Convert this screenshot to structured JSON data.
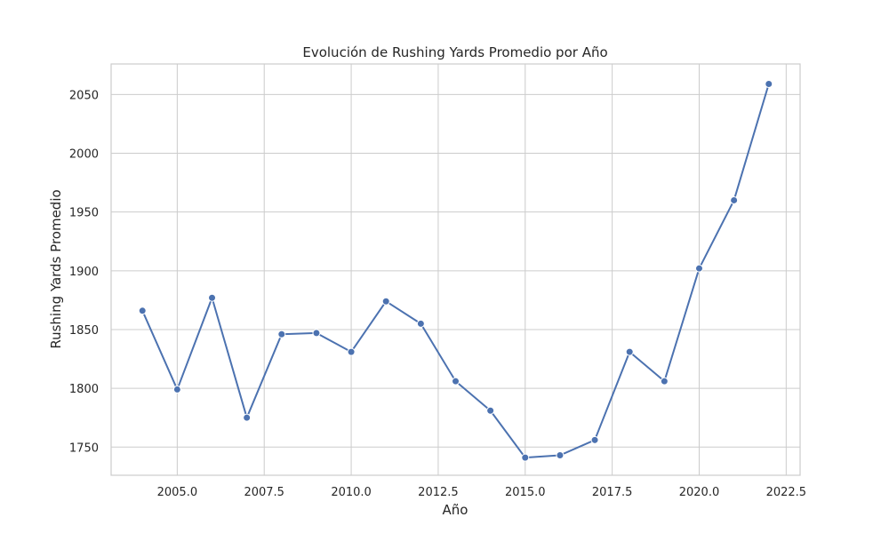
{
  "chart_data": {
    "type": "line",
    "title": "Evolución de Rushing Yards Promedio por Año",
    "xlabel": "Año",
    "ylabel": "Rushing Yards Promedio",
    "xlim": [
      2003.1,
      2022.9
    ],
    "ylim": [
      1726,
      2076
    ],
    "x_ticks": [
      2005.0,
      2007.5,
      2010.0,
      2012.5,
      2015.0,
      2017.5,
      2020.0,
      2022.5
    ],
    "x_tick_labels": [
      "2005.0",
      "2007.5",
      "2010.0",
      "2012.5",
      "2015.0",
      "2017.5",
      "2020.0",
      "2022.5"
    ],
    "y_ticks": [
      1750,
      1800,
      1850,
      1900,
      1950,
      2000,
      2050
    ],
    "y_tick_labels": [
      "1750",
      "1800",
      "1850",
      "1900",
      "1950",
      "2000",
      "2050"
    ],
    "grid": true,
    "series": [
      {
        "color": "#4c72b0",
        "x": [
          2004,
          2005,
          2006,
          2007,
          2008,
          2009,
          2010,
          2011,
          2012,
          2013,
          2014,
          2015,
          2016,
          2017,
          2018,
          2019,
          2020,
          2021,
          2022
        ],
        "y": [
          1866,
          1799,
          1877,
          1775,
          1846,
          1847,
          1831,
          1874,
          1855,
          1806,
          1781,
          1741,
          1743,
          1756,
          1831,
          1806,
          1902,
          1960,
          2059
        ]
      }
    ]
  }
}
